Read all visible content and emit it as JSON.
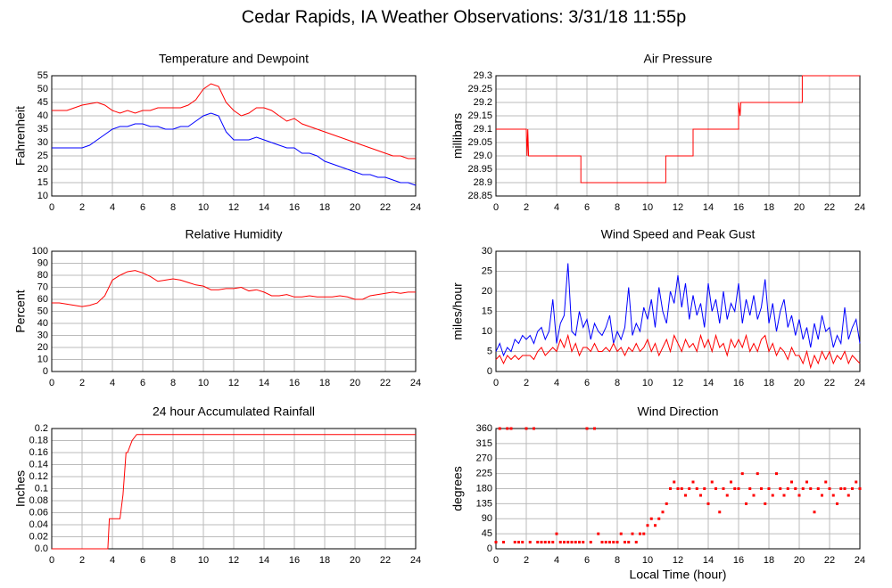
{
  "title": "Cedar Rapids, IA Weather Observations: 3/31/18 11:55p",
  "chart_data": [
    {
      "type": "line",
      "title": "Temperature and Dewpoint",
      "y_label": "Fahrenheit",
      "x": [
        0,
        0.5,
        1,
        1.5,
        2,
        2.5,
        3,
        3.5,
        4,
        4.5,
        5,
        5.5,
        6,
        6.5,
        7,
        7.5,
        8,
        8.5,
        9,
        9.5,
        10,
        10.5,
        11,
        11.5,
        12,
        12.5,
        13,
        13.5,
        14,
        14.5,
        15,
        15.5,
        16,
        16.5,
        17,
        17.5,
        18,
        18.5,
        19,
        19.5,
        20,
        20.5,
        21,
        21.5,
        22,
        22.5,
        23,
        23.5,
        24
      ],
      "series": [
        {
          "color": "#ff0000",
          "values": [
            42,
            42,
            42,
            43,
            44,
            44.5,
            45,
            44,
            42,
            41,
            42,
            41,
            42,
            42,
            43,
            43,
            43,
            43,
            44,
            46,
            50,
            52,
            51,
            45,
            42,
            40,
            41,
            43,
            43,
            42,
            40,
            38,
            39,
            37,
            36,
            35,
            34,
            33,
            32,
            31,
            30,
            29,
            28,
            27,
            26,
            25,
            25,
            24,
            24
          ]
        },
        {
          "color": "#0000ff",
          "values": [
            28,
            28,
            28,
            28,
            28,
            29,
            31,
            33,
            35,
            36,
            36,
            37,
            37,
            36,
            36,
            35,
            35,
            36,
            36,
            38,
            40,
            41,
            40,
            34,
            31,
            31,
            31,
            32,
            31,
            30,
            29,
            28,
            28,
            26,
            26,
            25,
            23,
            22,
            21,
            20,
            19,
            18,
            18,
            17,
            17,
            16,
            15,
            15,
            14
          ]
        }
      ],
      "xlim": [
        0,
        24
      ],
      "xticks": [
        0,
        2,
        4,
        6,
        8,
        10,
        12,
        14,
        16,
        18,
        20,
        22,
        24
      ],
      "ylim": [
        10,
        55
      ],
      "yticks": [
        10,
        15,
        20,
        25,
        30,
        35,
        40,
        45,
        50,
        55
      ],
      "grid": true
    },
    {
      "type": "line",
      "title": "Air Pressure",
      "y_label": "millibars",
      "x": [
        0,
        2,
        2.05,
        2.1,
        2.15,
        2.2,
        5.6,
        5.6,
        11.2,
        11.2,
        13,
        13,
        16,
        16,
        16.1,
        16.15,
        16.2,
        20.2,
        20.2,
        24
      ],
      "series": [
        {
          "color": "#ff0000",
          "values": [
            29.1,
            29.1,
            29,
            29.1,
            29,
            29,
            29,
            28.9,
            28.9,
            29,
            29,
            29.1,
            29.1,
            29.2,
            29.15,
            29.2,
            29.2,
            29.2,
            29.3,
            29.3
          ]
        }
      ],
      "xlim": [
        0,
        24
      ],
      "xticks": [
        0,
        2,
        4,
        6,
        8,
        10,
        12,
        14,
        16,
        18,
        20,
        22,
        24
      ],
      "ylim": [
        28.85,
        29.3
      ],
      "yticks": [
        28.85,
        28.9,
        28.95,
        {
          "value": 29,
          "label": "29.0"
        },
        29.05,
        29.1,
        29.15,
        29.2,
        29.25,
        29.3
      ],
      "grid": true
    },
    {
      "type": "line",
      "title": "Relative Humidity",
      "y_label": "Percent",
      "x": [
        0,
        0.5,
        1,
        1.5,
        2,
        2.5,
        3,
        3.5,
        4,
        4.5,
        5,
        5.5,
        6,
        6.5,
        7,
        7.5,
        8,
        8.5,
        9,
        9.5,
        10,
        10.5,
        11,
        11.5,
        12,
        12.5,
        13,
        13.5,
        14,
        14.5,
        15,
        15.5,
        16,
        16.5,
        17,
        17.5,
        18,
        18.5,
        19,
        19.5,
        20,
        20.5,
        21,
        21.5,
        22,
        22.5,
        23,
        23.5,
        24
      ],
      "series": [
        {
          "color": "#ff0000",
          "values": [
            57,
            57,
            56,
            55,
            54,
            55,
            57,
            63,
            76,
            80,
            83,
            84,
            82,
            79,
            75,
            76,
            77,
            76,
            74,
            72,
            71,
            68,
            68,
            69,
            69,
            70,
            67,
            68,
            66,
            63,
            63,
            64,
            62,
            62,
            63,
            62,
            62,
            62,
            63,
            62,
            60,
            60,
            63,
            64,
            65,
            66,
            65,
            66,
            66
          ]
        }
      ],
      "xlim": [
        0,
        24
      ],
      "xticks": [
        0,
        2,
        4,
        6,
        8,
        10,
        12,
        14,
        16,
        18,
        20,
        22,
        24
      ],
      "ylim": [
        0,
        100
      ],
      "yticks": [
        0,
        10,
        20,
        30,
        40,
        50,
        60,
        70,
        80,
        90,
        100
      ],
      "grid": true
    },
    {
      "type": "line",
      "title": "Wind Speed and Peak Gust",
      "y_label": "miles/hour",
      "x": [
        0,
        0.25,
        0.5,
        0.75,
        1,
        1.25,
        1.5,
        1.75,
        2,
        2.25,
        2.5,
        2.75,
        3,
        3.25,
        3.5,
        3.75,
        4,
        4.25,
        4.5,
        4.75,
        5,
        5.25,
        5.5,
        5.75,
        6,
        6.25,
        6.5,
        6.75,
        7,
        7.25,
        7.5,
        7.75,
        8,
        8.25,
        8.5,
        8.75,
        9,
        9.25,
        9.5,
        9.75,
        10,
        10.25,
        10.5,
        10.75,
        11,
        11.25,
        11.5,
        11.75,
        12,
        12.25,
        12.5,
        12.75,
        13,
        13.25,
        13.5,
        13.75,
        14,
        14.25,
        14.5,
        14.75,
        15,
        15.25,
        15.5,
        15.75,
        16,
        16.25,
        16.5,
        16.75,
        17,
        17.25,
        17.5,
        17.75,
        18,
        18.25,
        18.5,
        18.75,
        19,
        19.25,
        19.5,
        19.75,
        20,
        20.25,
        20.5,
        20.75,
        21,
        21.25,
        21.5,
        21.75,
        22,
        22.25,
        22.5,
        22.75,
        23,
        23.25,
        23.5,
        23.75,
        24
      ],
      "series": [
        {
          "color": "#0000ff",
          "values": [
            5,
            7,
            4,
            6,
            5,
            8,
            7,
            9,
            8,
            9,
            7,
            10,
            11,
            8,
            10,
            18,
            7,
            12,
            14,
            27,
            10,
            9,
            15,
            11,
            13,
            8,
            12,
            10,
            9,
            11,
            14,
            7,
            10,
            8,
            11,
            21,
            9,
            12,
            10,
            16,
            13,
            18,
            11,
            21,
            15,
            12,
            20,
            17,
            24,
            16,
            22,
            13,
            19,
            14,
            17,
            11,
            22,
            15,
            18,
            12,
            20,
            13,
            17,
            15,
            22,
            12,
            18,
            14,
            19,
            13,
            16,
            23,
            12,
            17,
            10,
            15,
            18,
            11,
            14,
            9,
            13,
            8,
            11,
            6,
            12,
            8,
            14,
            10,
            11,
            6,
            9,
            7,
            16,
            8,
            11,
            13,
            7
          ]
        },
        {
          "color": "#ff0000",
          "values": [
            3,
            4,
            2,
            4,
            3,
            4,
            3,
            4,
            4,
            4,
            3,
            5,
            6,
            4,
            5,
            6,
            5,
            8,
            6,
            9,
            5,
            7,
            4,
            6,
            6,
            5,
            7,
            5,
            5,
            6,
            5,
            7,
            5,
            6,
            4,
            6,
            5,
            7,
            5,
            6,
            8,
            5,
            7,
            4,
            6,
            8,
            5,
            9,
            7,
            5,
            8,
            6,
            7,
            5,
            9,
            6,
            8,
            5,
            9,
            6,
            7,
            4,
            8,
            6,
            8,
            6,
            9,
            5,
            7,
            5,
            8,
            9,
            5,
            7,
            4,
            6,
            5,
            3,
            6,
            4,
            4,
            2,
            5,
            1,
            4,
            2,
            5,
            3,
            5,
            2,
            4,
            3,
            5,
            2,
            4,
            3,
            2
          ]
        }
      ],
      "xlim": [
        0,
        24
      ],
      "xticks": [
        0,
        2,
        4,
        6,
        8,
        10,
        12,
        14,
        16,
        18,
        20,
        22,
        24
      ],
      "ylim": [
        0,
        30
      ],
      "yticks": [
        0,
        5,
        10,
        15,
        20,
        25,
        30
      ],
      "grid": true
    },
    {
      "type": "line",
      "title": "24 hour Accumulated Rainfall",
      "y_label": "Inches",
      "x": [
        0,
        3.7,
        3.8,
        4,
        4.5,
        4.7,
        4.9,
        5,
        5.3,
        5.6,
        5.8,
        24
      ],
      "series": [
        {
          "color": "#ff0000",
          "values": [
            0,
            0,
            0.05,
            0.05,
            0.05,
            0.09,
            0.16,
            0.16,
            0.18,
            0.19,
            0.19,
            0.19
          ]
        }
      ],
      "xlim": [
        0,
        24
      ],
      "xticks": [
        0,
        2,
        4,
        6,
        8,
        10,
        12,
        14,
        16,
        18,
        20,
        22,
        24
      ],
      "ylim": [
        0,
        0.2
      ],
      "yticks": [
        {
          "value": 0,
          "label": "0.0"
        },
        0.02,
        0.04,
        0.06,
        0.08,
        0.1,
        0.12,
        0.14,
        0.16,
        0.18,
        0.2
      ],
      "grid": true
    },
    {
      "type": "scatter",
      "title": "Wind Direction",
      "y_label": "degrees",
      "x_label": "Local Time (hour)",
      "x": [
        0,
        0.25,
        0.5,
        0.75,
        1,
        1.25,
        1.5,
        1.75,
        2,
        2.25,
        2.5,
        2.75,
        3,
        3.25,
        3.5,
        3.75,
        4,
        4.25,
        4.5,
        4.75,
        5,
        5.25,
        5.5,
        5.75,
        6,
        6.25,
        6.5,
        6.75,
        7,
        7.25,
        7.5,
        7.75,
        8,
        8.25,
        8.5,
        8.75,
        9,
        9.25,
        9.5,
        9.75,
        10,
        10.25,
        10.5,
        10.75,
        11,
        11.25,
        11.5,
        11.75,
        12,
        12.25,
        12.5,
        12.75,
        13,
        13.25,
        13.5,
        13.75,
        14,
        14.25,
        14.5,
        14.75,
        15,
        15.25,
        15.5,
        15.75,
        16,
        16.25,
        16.5,
        16.75,
        17,
        17.25,
        17.5,
        17.75,
        18,
        18.25,
        18.5,
        18.75,
        19,
        19.25,
        19.5,
        19.75,
        20,
        20.25,
        20.5,
        20.75,
        21,
        21.25,
        21.5,
        21.75,
        22,
        22.25,
        22.5,
        22.75,
        23,
        23.25,
        23.5,
        23.75,
        24
      ],
      "series": [
        {
          "color": "#ff0000",
          "values": [
            20,
            360,
            20,
            360,
            360,
            20,
            20,
            20,
            360,
            20,
            360,
            20,
            20,
            20,
            20,
            20,
            45,
            20,
            20,
            20,
            20,
            20,
            20,
            20,
            360,
            20,
            360,
            45,
            20,
            20,
            20,
            20,
            20,
            45,
            20,
            20,
            45,
            20,
            45,
            45,
            70,
            90,
            70,
            90,
            110,
            135,
            180,
            200,
            180,
            180,
            160,
            180,
            200,
            180,
            160,
            180,
            135,
            200,
            180,
            110,
            180,
            160,
            200,
            180,
            180,
            225,
            135,
            180,
            160,
            225,
            180,
            135,
            180,
            160,
            225,
            180,
            160,
            180,
            200,
            180,
            160,
            180,
            200,
            180,
            110,
            180,
            160,
            200,
            180,
            160,
            135,
            180,
            180,
            160,
            180,
            200,
            180
          ]
        }
      ],
      "xlim": [
        0,
        24
      ],
      "xticks": [
        0,
        2,
        4,
        6,
        8,
        10,
        12,
        14,
        16,
        18,
        20,
        22,
        24
      ],
      "ylim": [
        0,
        360
      ],
      "yticks": [
        0,
        45,
        90,
        135,
        180,
        225,
        270,
        315,
        360
      ],
      "grid": true
    }
  ]
}
